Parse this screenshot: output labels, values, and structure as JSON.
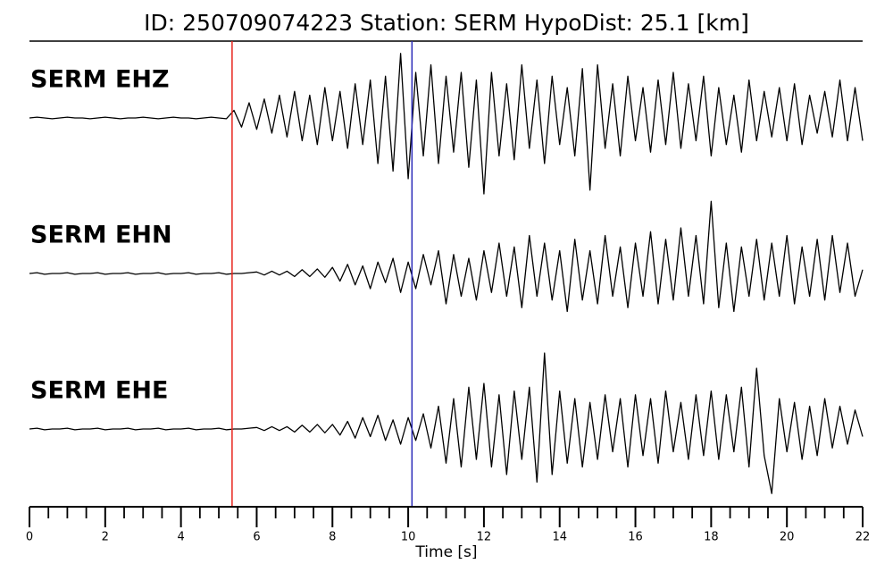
{
  "chart_data": {
    "type": "line",
    "title": "ID: 250709074223   Station: SERM   HypoDist:    25.1 [km]",
    "xlabel": "Time [s]",
    "xlim": [
      0,
      22
    ],
    "xticks": [
      0,
      2,
      4,
      6,
      8,
      10,
      12,
      14,
      16,
      18,
      20,
      22
    ],
    "xminorticks": [
      0.5,
      1,
      1.5,
      2.5,
      3,
      3.5,
      4.5,
      5,
      5.5,
      6.5,
      7,
      7.5,
      8.5,
      9,
      9.5,
      10.5,
      11,
      11.5,
      12.5,
      13,
      13.5,
      14.5,
      15,
      15.5,
      16.5,
      17,
      17.5,
      18.5,
      19,
      19.5,
      20.5,
      21,
      21.5
    ],
    "ylim": [
      -1,
      1
    ],
    "vlines": [
      {
        "x": 5.35,
        "color": "#e8241c"
      },
      {
        "x": 10.1,
        "color": "#2a2ab8"
      }
    ],
    "label_color": "#4c9a00",
    "x": [
      0,
      0.2,
      0.4,
      0.6,
      0.8,
      1,
      1.2,
      1.4,
      1.6,
      1.8,
      2,
      2.2,
      2.4,
      2.6,
      2.8,
      3,
      3.2,
      3.4,
      3.6,
      3.8,
      4,
      4.2,
      4.4,
      4.6,
      4.8,
      5,
      5.2,
      5.4,
      5.6,
      5.8,
      6,
      6.2,
      6.4,
      6.6,
      6.8,
      7,
      7.2,
      7.4,
      7.6,
      7.8,
      8,
      8.2,
      8.4,
      8.6,
      8.8,
      9,
      9.2,
      9.4,
      9.6,
      9.8,
      10,
      10.2,
      10.4,
      10.6,
      10.8,
      11,
      11.2,
      11.4,
      11.6,
      11.8,
      12,
      12.2,
      12.4,
      12.6,
      12.8,
      13,
      13.2,
      13.4,
      13.6,
      13.8,
      14,
      14.2,
      14.4,
      14.6,
      14.8,
      15,
      15.2,
      15.4,
      15.6,
      15.8,
      16,
      16.2,
      16.4,
      16.6,
      16.8,
      17,
      17.2,
      17.4,
      17.6,
      17.8,
      18,
      18.2,
      18.4,
      18.6,
      18.8,
      19,
      19.2,
      19.4,
      19.6,
      19.8,
      20,
      20.2,
      20.4,
      20.6,
      20.8,
      21,
      21.2,
      21.4,
      21.6,
      21.8,
      22
    ],
    "series": [
      {
        "name": "SERM EHZ",
        "color": "#000000",
        "values": [
          0,
          0.01,
          0,
          -0.01,
          0,
          0.01,
          0,
          0,
          -0.01,
          0,
          0.01,
          0,
          -0.01,
          0,
          0,
          0.01,
          0,
          -0.01,
          0,
          0.01,
          0,
          0,
          -0.01,
          0,
          0.01,
          0,
          -0.01,
          0.1,
          -0.12,
          0.2,
          -0.15,
          0.25,
          -0.2,
          0.3,
          -0.25,
          0.35,
          -0.3,
          0.3,
          -0.35,
          0.4,
          -0.3,
          0.35,
          -0.4,
          0.45,
          -0.35,
          0.5,
          -0.6,
          0.55,
          -0.7,
          0.85,
          -0.8,
          0.6,
          -0.5,
          0.7,
          -0.6,
          0.55,
          -0.45,
          0.6,
          -0.65,
          0.5,
          -1.0,
          0.6,
          -0.5,
          0.45,
          -0.55,
          0.7,
          -0.4,
          0.5,
          -0.6,
          0.55,
          -0.35,
          0.4,
          -0.5,
          0.65,
          -0.95,
          0.7,
          -0.4,
          0.45,
          -0.5,
          0.55,
          -0.3,
          0.4,
          -0.45,
          0.5,
          -0.35,
          0.6,
          -0.4,
          0.45,
          -0.3,
          0.55,
          -0.5,
          0.4,
          -0.35,
          0.3,
          -0.45,
          0.5,
          -0.3,
          0.35,
          -0.25,
          0.4,
          -0.3,
          0.45,
          -0.35,
          0.3,
          -0.2,
          0.35,
          -0.25,
          0.5,
          -0.3,
          0.4,
          -0.3
        ]
      },
      {
        "name": "SERM EHN",
        "color": "#000000",
        "values": [
          0,
          0.01,
          -0.01,
          0,
          0,
          0.01,
          -0.01,
          0,
          0,
          0.01,
          -0.01,
          0,
          0,
          0.01,
          -0.01,
          0,
          0,
          0.01,
          -0.01,
          0,
          0,
          0.01,
          -0.01,
          0,
          0,
          0.01,
          -0.01,
          0,
          0,
          0.01,
          0.02,
          -0.02,
          0.03,
          -0.02,
          0.03,
          -0.04,
          0.05,
          -0.04,
          0.06,
          -0.05,
          0.08,
          -0.1,
          0.12,
          -0.15,
          0.1,
          -0.2,
          0.15,
          -0.12,
          0.2,
          -0.25,
          0.15,
          -0.2,
          0.25,
          -0.15,
          0.3,
          -0.4,
          0.25,
          -0.3,
          0.2,
          -0.35,
          0.3,
          -0.25,
          0.4,
          -0.3,
          0.35,
          -0.45,
          0.5,
          -0.3,
          0.4,
          -0.35,
          0.3,
          -0.5,
          0.45,
          -0.35,
          0.3,
          -0.4,
          0.5,
          -0.3,
          0.35,
          -0.45,
          0.4,
          -0.3,
          0.55,
          -0.4,
          0.45,
          -0.35,
          0.6,
          -0.3,
          0.5,
          -0.4,
          0.95,
          -0.45,
          0.4,
          -0.5,
          0.35,
          -0.3,
          0.45,
          -0.35,
          0.4,
          -0.3,
          0.5,
          -0.4,
          0.35,
          -0.3,
          0.45,
          -0.35,
          0.5,
          -0.25,
          0.4,
          -0.3,
          0.05
        ]
      },
      {
        "name": "SERM EHE",
        "color": "#000000",
        "values": [
          0,
          0.01,
          -0.01,
          0,
          0,
          0.01,
          -0.01,
          0,
          0,
          0.01,
          -0.01,
          0,
          0,
          0.01,
          -0.01,
          0,
          0,
          0.01,
          -0.01,
          0,
          0,
          0.01,
          -0.01,
          0,
          0,
          0.01,
          -0.01,
          0,
          0,
          0.01,
          0.02,
          -0.02,
          0.03,
          -0.02,
          0.03,
          -0.04,
          0.05,
          -0.04,
          0.06,
          -0.05,
          0.06,
          -0.08,
          0.1,
          -0.12,
          0.15,
          -0.1,
          0.18,
          -0.15,
          0.12,
          -0.2,
          0.15,
          -0.15,
          0.2,
          -0.25,
          0.3,
          -0.45,
          0.4,
          -0.5,
          0.55,
          -0.4,
          0.6,
          -0.5,
          0.45,
          -0.6,
          0.5,
          -0.4,
          0.55,
          -0.7,
          1.0,
          -0.6,
          0.5,
          -0.45,
          0.4,
          -0.5,
          0.35,
          -0.4,
          0.45,
          -0.3,
          0.4,
          -0.5,
          0.45,
          -0.35,
          0.4,
          -0.45,
          0.5,
          -0.3,
          0.35,
          -0.4,
          0.45,
          -0.35,
          0.5,
          -0.4,
          0.45,
          -0.3,
          0.55,
          -0.5,
          0.8,
          -0.35,
          -0.85,
          0.4,
          -0.3,
          0.35,
          -0.4,
          0.3,
          -0.35,
          0.4,
          -0.25,
          0.3,
          -0.2,
          0.25,
          -0.1
        ]
      }
    ]
  }
}
